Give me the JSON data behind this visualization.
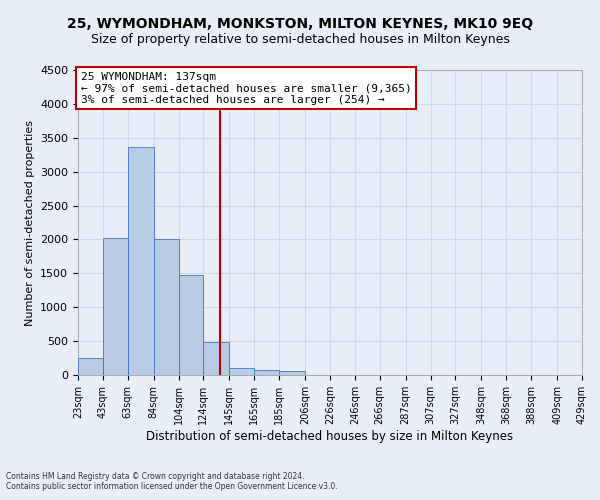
{
  "title": "25, WYMONDHAM, MONKSTON, MILTON KEYNES, MK10 9EQ",
  "subtitle": "Size of property relative to semi-detached houses in Milton Keynes",
  "xlabel": "Distribution of semi-detached houses by size in Milton Keynes",
  "ylabel": "Number of semi-detached properties",
  "footnote1": "Contains HM Land Registry data © Crown copyright and database right 2024.",
  "footnote2": "Contains public sector information licensed under the Open Government Licence v3.0.",
  "bar_edges": [
    23,
    43,
    63,
    84,
    104,
    124,
    145,
    165,
    185,
    206,
    226,
    246,
    266,
    287,
    307,
    327,
    348,
    368,
    388,
    409,
    429
  ],
  "bar_values": [
    250,
    2020,
    3360,
    2010,
    1470,
    480,
    105,
    70,
    55,
    0,
    0,
    0,
    0,
    0,
    0,
    0,
    0,
    0,
    0,
    0
  ],
  "bar_color": "#b8cce4",
  "bar_edgecolor": "#4472c4",
  "property_size": 137,
  "vline_color": "#c00000",
  "annotation_text": "25 WYMONDHAM: 137sqm\n← 97% of semi-detached houses are smaller (9,365)\n3% of semi-detached houses are larger (254) →",
  "annotation_box_edgecolor": "#c00000",
  "annotation_box_facecolor": "white",
  "ylim": [
    0,
    4500
  ],
  "yticks": [
    0,
    500,
    1000,
    1500,
    2000,
    2500,
    3000,
    3500,
    4000,
    4500
  ],
  "grid_color": "#d0d8e8",
  "background_color": "#e8eef8",
  "title_fontsize": 10,
  "subtitle_fontsize": 9,
  "tick_label_fontsize": 7,
  "ylabel_fontsize": 8,
  "xlabel_fontsize": 8.5,
  "annotation_fontsize": 8,
  "footnote_fontsize": 5.5
}
